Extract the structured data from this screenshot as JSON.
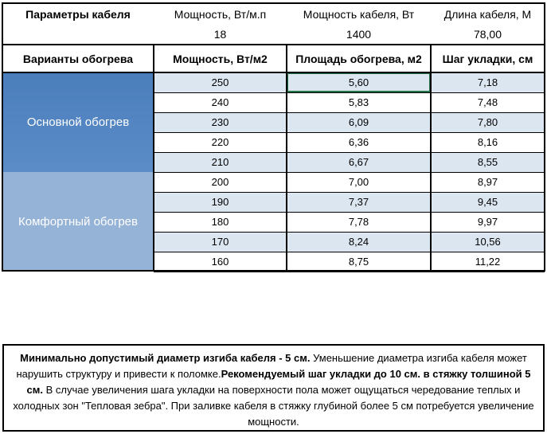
{
  "params": {
    "title": "Параметры кабеля",
    "labels": [
      "Мощность, Вт/м.п",
      "Мощность кабеля, Вт",
      "Длина кабеля, М"
    ],
    "values": [
      "18",
      "1400",
      "78,00"
    ]
  },
  "table": {
    "headers": [
      "Варианты обогрева",
      "Мощность, Вт/м2",
      "Площадь обогрева, м2",
      "Шаг укладки, см"
    ],
    "groups": [
      {
        "label": "Основной обогрев",
        "rows": [
          [
            "250",
            "5,60",
            "7,18"
          ],
          [
            "240",
            "5,83",
            "7,48"
          ],
          [
            "230",
            "6,09",
            "7,80"
          ],
          [
            "220",
            "6,36",
            "8,16"
          ],
          [
            "210",
            "6,67",
            "8,55"
          ]
        ]
      },
      {
        "label": "Комфортный обогрев",
        "rows": [
          [
            "200",
            "7,00",
            "8,97"
          ],
          [
            "190",
            "7,37",
            "9,45"
          ],
          [
            "180",
            "7,78",
            "9,97"
          ],
          [
            "170",
            "8,24",
            "10,56"
          ],
          [
            "160",
            "8,75",
            "11,22"
          ]
        ]
      }
    ]
  },
  "note": {
    "segments": [
      {
        "bold": true,
        "text": "Минимально допустимый диаметр изгиба кабеля - 5 см."
      },
      {
        "bold": false,
        "text": "  Уменьшение диаметра изгиба кабеля может нарушить структуру и привести к поломке."
      },
      {
        "bold": true,
        "text": "Рекомендуемый шаг укладки до 10 см. в стяжку толшиной 5 см."
      },
      {
        "bold": false,
        "text": " В  случае увеличения шага укладки на поверхности пола может ощущаться чередование теплых и холодных зон \"Тепловая зебра\". При заливке кабеля в стяжку глубиной более 5 см потребуется увеличение мощности."
      }
    ]
  }
}
